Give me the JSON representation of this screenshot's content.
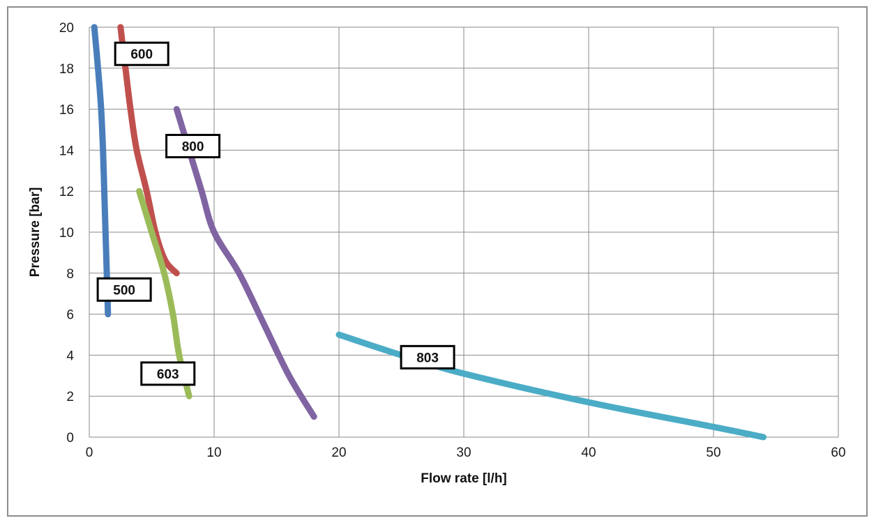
{
  "chart_data": {
    "type": "line",
    "xlabel": "Flow rate [l/h]",
    "ylabel": "Pressure [bar]",
    "xlim": [
      0,
      60
    ],
    "ylim": [
      0,
      20
    ],
    "x_ticks": [
      0,
      10,
      20,
      30,
      40,
      50,
      60
    ],
    "y_ticks": [
      0,
      2,
      4,
      6,
      8,
      10,
      12,
      14,
      16,
      18,
      20
    ],
    "x_tick_labels": [
      "0",
      "10",
      "20",
      "30",
      "40",
      "50",
      "60"
    ],
    "y_tick_labels": [
      "0",
      "2",
      "4",
      "6",
      "8",
      "10",
      "12",
      "14",
      "16",
      "18",
      "20"
    ],
    "grid": true,
    "legend": "none",
    "series": [
      {
        "name": "500",
        "color": "#4A7EBB",
        "points": [
          [
            0.4,
            20
          ],
          [
            0.7,
            18
          ],
          [
            0.95,
            16
          ],
          [
            1.1,
            14
          ],
          [
            1.2,
            12
          ],
          [
            1.3,
            10
          ],
          [
            1.4,
            8
          ],
          [
            1.5,
            6
          ]
        ]
      },
      {
        "name": "600",
        "color": "#C0504D",
        "points": [
          [
            2.5,
            20
          ],
          [
            2.9,
            18
          ],
          [
            3.3,
            16
          ],
          [
            3.8,
            14
          ],
          [
            4.6,
            12
          ],
          [
            5.3,
            10
          ],
          [
            6.1,
            8.6
          ],
          [
            7,
            8
          ]
        ]
      },
      {
        "name": "603",
        "color": "#9BBB59",
        "points": [
          [
            4,
            12
          ],
          [
            5,
            10
          ],
          [
            6,
            8
          ],
          [
            6.7,
            6
          ],
          [
            7.2,
            4
          ],
          [
            8,
            2
          ]
        ]
      },
      {
        "name": "800",
        "color": "#8064A2",
        "points": [
          [
            7,
            16
          ],
          [
            8,
            14
          ],
          [
            9,
            12
          ],
          [
            10,
            10
          ],
          [
            12,
            8
          ],
          [
            14,
            5.5
          ],
          [
            16,
            3
          ],
          [
            18,
            1
          ]
        ]
      },
      {
        "name": "803",
        "color": "#4BACC6",
        "points": [
          [
            20,
            5
          ],
          [
            25,
            4
          ],
          [
            30,
            3.1
          ],
          [
            40,
            1.7
          ],
          [
            50,
            0.5
          ],
          [
            54,
            0
          ]
        ]
      }
    ],
    "annotations": [
      {
        "text": "600",
        "series": "600",
        "x": 4.2,
        "y": 18.7
      },
      {
        "text": "800",
        "series": "800",
        "x": 8.3,
        "y": 14.2
      },
      {
        "text": "500",
        "series": "500",
        "x": 2.8,
        "y": 7.2
      },
      {
        "text": "603",
        "series": "603",
        "x": 6.3,
        "y": 3.1
      },
      {
        "text": "803",
        "series": "803",
        "x": 27.1,
        "y": 3.9
      }
    ]
  }
}
